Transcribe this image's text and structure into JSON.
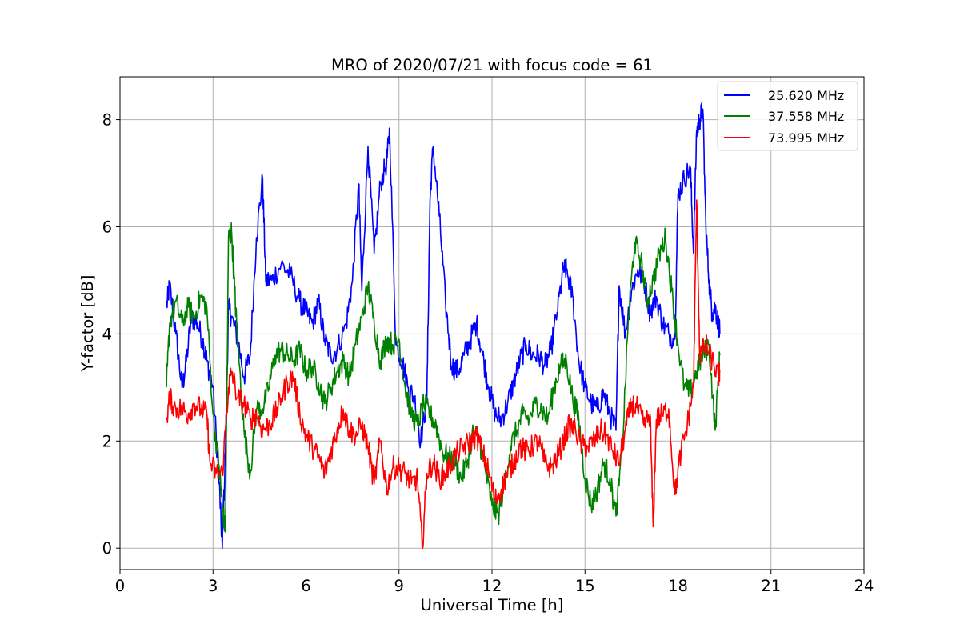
{
  "chart_data": {
    "type": "line",
    "title": "MRO of 2020/07/21 with focus code = 61",
    "xlabel": "Universal Time [h]",
    "ylabel": "Y-factor [dB]",
    "xlim": [
      0,
      24
    ],
    "ylim": [
      -0.4,
      8.8
    ],
    "xticks": [
      0,
      3,
      6,
      9,
      12,
      15,
      18,
      21,
      24
    ],
    "yticks": [
      0,
      2,
      4,
      6,
      8
    ],
    "grid": true,
    "legend_position": "top-right",
    "series": [
      {
        "name": "25.620 MHz",
        "color": "#0000ff",
        "x": [
          1.5,
          1.6,
          1.8,
          2.0,
          2.1,
          2.3,
          2.5,
          2.7,
          2.8,
          3.0,
          3.2,
          3.3,
          3.4,
          3.5,
          3.6,
          3.8,
          4.0,
          4.2,
          4.4,
          4.6,
          4.7,
          4.9,
          5.2,
          5.5,
          5.8,
          6.0,
          6.2,
          6.4,
          6.6,
          6.8,
          7.0,
          7.3,
          7.5,
          7.7,
          7.8,
          8.0,
          8.2,
          8.4,
          8.6,
          8.7,
          8.9,
          9.1,
          9.3,
          9.5,
          9.7,
          9.9,
          10.0,
          10.1,
          10.3,
          10.5,
          10.7,
          10.9,
          11.1,
          11.3,
          11.5,
          11.7,
          11.9,
          12.1,
          12.3,
          12.5,
          12.7,
          12.9,
          13.1,
          13.3,
          13.5,
          13.7,
          13.9,
          14.1,
          14.3,
          14.4,
          14.6,
          14.8,
          15.0,
          15.2,
          15.4,
          15.6,
          15.8,
          16.0,
          16.1,
          16.3,
          16.5,
          16.7,
          16.9,
          17.1,
          17.3,
          17.5,
          17.7,
          17.9,
          18.0,
          18.2,
          18.4,
          18.5,
          18.6,
          18.7,
          18.8,
          18.9,
          19.0,
          19.1,
          19.2,
          19.3,
          19.35
        ],
        "y": [
          4.5,
          4.9,
          4.0,
          3.0,
          3.3,
          4.3,
          4.2,
          3.8,
          3.5,
          3.0,
          1.2,
          0.0,
          1.8,
          4.5,
          4.3,
          3.9,
          3.2,
          3.6,
          5.8,
          6.9,
          5.0,
          5.0,
          5.3,
          5.1,
          4.6,
          4.4,
          4.2,
          4.6,
          3.9,
          3.6,
          3.7,
          4.2,
          5.0,
          6.8,
          4.8,
          7.5,
          5.5,
          6.8,
          7.2,
          7.8,
          3.8,
          3.5,
          3.0,
          2.8,
          2.0,
          2.8,
          6.5,
          7.5,
          6.2,
          4.6,
          3.4,
          3.3,
          3.6,
          3.9,
          4.2,
          3.6,
          3.0,
          2.5,
          2.4,
          2.7,
          3.1,
          3.5,
          3.8,
          3.6,
          3.6,
          3.4,
          3.7,
          4.4,
          5.2,
          5.2,
          4.7,
          3.5,
          3.0,
          2.7,
          2.6,
          2.9,
          2.5,
          2.2,
          4.9,
          4.0,
          4.8,
          5.2,
          5.0,
          4.4,
          4.7,
          4.2,
          4.0,
          3.9,
          6.6,
          6.9,
          7.1,
          5.5,
          7.8,
          8.0,
          8.2,
          6.0,
          5.0,
          4.4,
          4.5,
          4.2,
          4.0
        ]
      },
      {
        "name": "37.558 MHz",
        "color": "#008000",
        "x": [
          1.5,
          1.6,
          1.8,
          2.0,
          2.2,
          2.4,
          2.6,
          2.8,
          3.0,
          3.2,
          3.3,
          3.4,
          3.5,
          3.6,
          3.7,
          3.8,
          4.0,
          4.2,
          4.4,
          4.6,
          4.8,
          5.0,
          5.2,
          5.4,
          5.6,
          5.8,
          6.0,
          6.2,
          6.4,
          6.6,
          6.8,
          7.0,
          7.2,
          7.4,
          7.6,
          7.8,
          8.0,
          8.2,
          8.4,
          8.6,
          8.8,
          9.0,
          9.2,
          9.4,
          9.6,
          9.8,
          10.0,
          10.2,
          10.4,
          10.6,
          10.8,
          11.0,
          11.2,
          11.4,
          11.6,
          11.8,
          12.0,
          12.2,
          12.4,
          12.6,
          12.8,
          13.0,
          13.2,
          13.4,
          13.6,
          13.8,
          14.0,
          14.2,
          14.4,
          14.6,
          14.8,
          15.0,
          15.2,
          15.4,
          15.6,
          15.8,
          16.0,
          16.2,
          16.4,
          16.6,
          16.8,
          17.0,
          17.2,
          17.4,
          17.6,
          17.8,
          18.0,
          18.2,
          18.4,
          18.6,
          18.8,
          19.0,
          19.2,
          19.35
        ],
        "y": [
          3.0,
          4.2,
          4.6,
          4.2,
          4.5,
          4.3,
          4.7,
          4.5,
          2.5,
          1.5,
          0.8,
          0.3,
          5.8,
          5.9,
          4.8,
          3.8,
          2.2,
          1.4,
          2.6,
          2.6,
          3.0,
          3.6,
          3.7,
          3.6,
          3.5,
          3.7,
          3.3,
          3.4,
          3.1,
          2.7,
          3.0,
          3.3,
          3.5,
          3.2,
          3.8,
          4.3,
          4.9,
          4.2,
          3.5,
          3.9,
          3.8,
          3.9,
          3.0,
          2.5,
          2.3,
          2.7,
          2.5,
          2.3,
          1.8,
          1.7,
          1.6,
          1.3,
          1.6,
          2.2,
          2.0,
          1.4,
          0.8,
          0.6,
          1.2,
          1.9,
          2.2,
          2.5,
          2.4,
          2.7,
          2.6,
          2.4,
          3.0,
          3.4,
          3.5,
          2.8,
          2.4,
          1.3,
          0.8,
          1.1,
          1.6,
          1.3,
          0.6,
          1.8,
          4.3,
          5.7,
          5.4,
          4.6,
          5.0,
          5.5,
          5.8,
          4.8,
          3.8,
          3.0,
          2.9,
          3.3,
          3.6,
          3.8,
          2.2,
          3.6
        ]
      },
      {
        "name": "73.995 MHz",
        "color": "#ff0000",
        "x": [
          1.5,
          1.6,
          1.8,
          2.0,
          2.2,
          2.4,
          2.6,
          2.8,
          2.9,
          3.1,
          3.3,
          3.5,
          3.6,
          3.8,
          4.0,
          4.2,
          4.4,
          4.6,
          4.8,
          5.0,
          5.2,
          5.4,
          5.6,
          5.8,
          6.0,
          6.2,
          6.4,
          6.6,
          6.8,
          7.0,
          7.2,
          7.4,
          7.6,
          7.8,
          8.0,
          8.2,
          8.4,
          8.6,
          8.8,
          9.0,
          9.2,
          9.4,
          9.6,
          9.75,
          9.9,
          10.1,
          10.3,
          10.5,
          10.7,
          10.9,
          11.1,
          11.3,
          11.5,
          11.7,
          11.9,
          12.1,
          12.3,
          12.5,
          12.7,
          12.9,
          13.1,
          13.3,
          13.5,
          13.7,
          13.9,
          14.1,
          14.3,
          14.5,
          14.7,
          14.9,
          15.1,
          15.3,
          15.5,
          15.7,
          15.9,
          16.1,
          16.3,
          16.5,
          16.7,
          16.9,
          17.1,
          17.2,
          17.3,
          17.5,
          17.7,
          17.9,
          18.1,
          18.3,
          18.5,
          18.6,
          18.7,
          18.9,
          19.1,
          19.3,
          19.35
        ],
        "y": [
          2.4,
          2.8,
          2.6,
          2.6,
          2.5,
          2.7,
          2.6,
          2.5,
          1.6,
          1.4,
          1.4,
          3.0,
          3.3,
          2.8,
          2.7,
          2.4,
          2.5,
          2.2,
          2.3,
          2.5,
          2.8,
          3.1,
          3.2,
          2.5,
          2.1,
          1.9,
          1.7,
          1.4,
          1.8,
          2.2,
          2.6,
          2.2,
          2.1,
          2.3,
          1.9,
          1.2,
          2.0,
          1.1,
          1.5,
          1.5,
          1.4,
          1.2,
          1.3,
          0.0,
          1.4,
          1.6,
          1.3,
          1.4,
          1.6,
          1.8,
          1.9,
          2.0,
          2.1,
          1.8,
          1.4,
          0.9,
          1.1,
          1.4,
          1.6,
          1.9,
          1.8,
          1.9,
          2.0,
          1.6,
          1.5,
          1.7,
          2.0,
          2.3,
          2.2,
          1.9,
          1.9,
          2.0,
          2.2,
          2.1,
          1.8,
          1.6,
          2.2,
          2.7,
          2.6,
          2.3,
          2.5,
          0.4,
          2.4,
          2.5,
          2.6,
          1.0,
          1.8,
          2.3,
          3.0,
          6.5,
          3.6,
          3.8,
          3.5,
          3.2,
          3.3
        ]
      }
    ]
  }
}
